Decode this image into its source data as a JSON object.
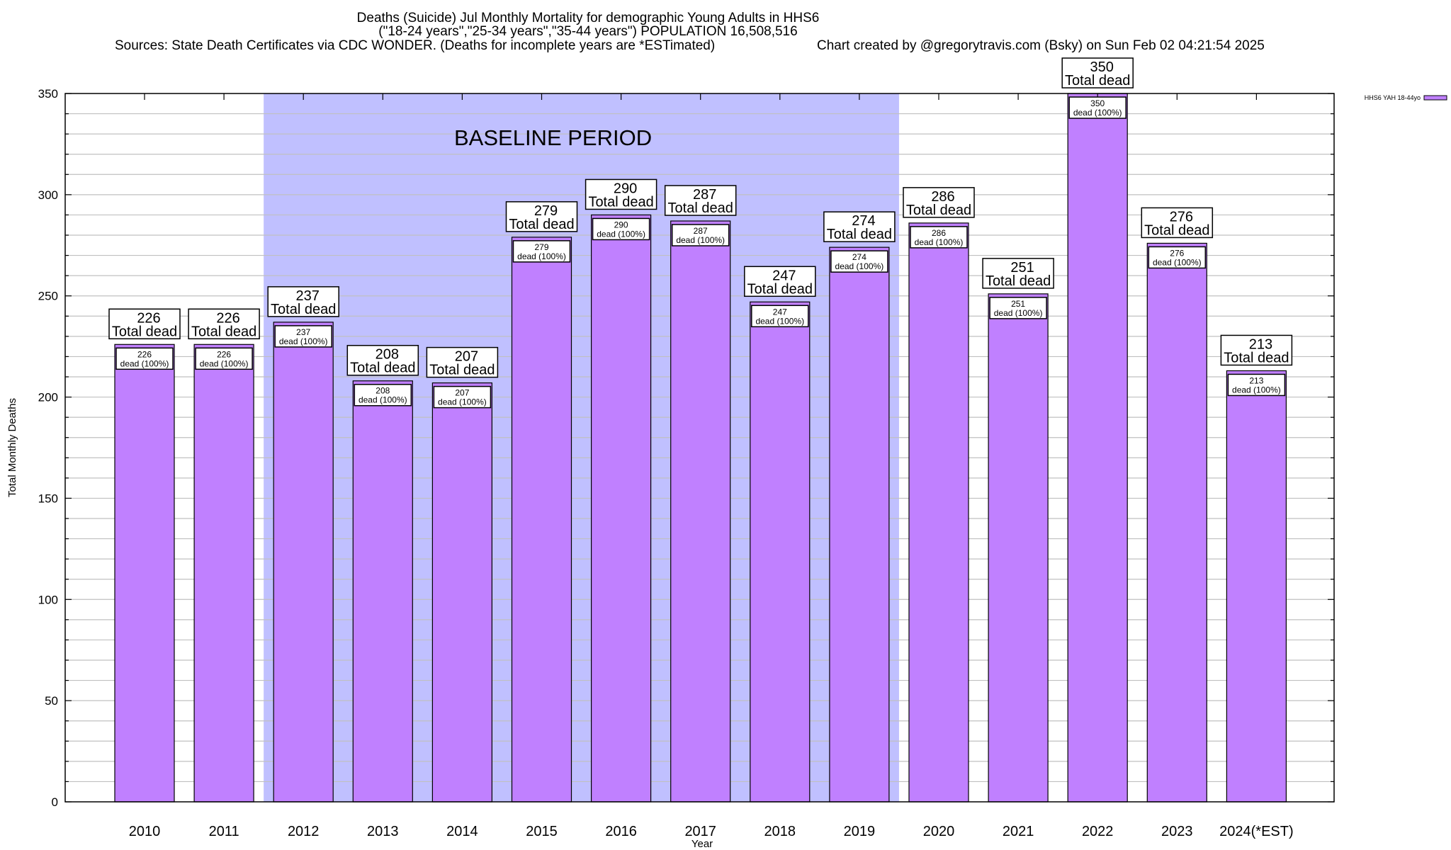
{
  "chart_data": {
    "type": "bar",
    "title_lines": [
      "Deaths (Suicide) Jul Monthly Mortality for demographic Young Adults in HHS6",
      "(\"18-24 years\",\"25-34 years\",\"35-44 years\") POPULATION 16,508,516"
    ],
    "sources": "Sources: State Death Certificates via CDC WONDER. (Deaths for incomplete years are *ESTimated)",
    "credit": "Chart created by @gregorytravis.com (Bsky) on Sun Feb 02 04:21:54 2025",
    "xlabel": "Year",
    "ylabel": "Total Monthly Deaths",
    "ylim": [
      0,
      350
    ],
    "yticks": [
      0,
      50,
      100,
      150,
      200,
      250,
      300,
      350
    ],
    "minor_tick_step": 10,
    "grid": true,
    "categories": [
      "2010",
      "2011",
      "2012",
      "2013",
      "2014",
      "2015",
      "2016",
      "2017",
      "2018",
      "2019",
      "2020",
      "2021",
      "2022",
      "2023",
      "2024(*EST)"
    ],
    "series": [
      {
        "name": "HHS6 YAH 18-44yo",
        "color": "#c080ff",
        "values": [
          226,
          226,
          237,
          208,
          207,
          279,
          290,
          287,
          247,
          274,
          286,
          251,
          350,
          276,
          213
        ]
      }
    ],
    "bar_top_label_suffix": "Total dead",
    "bar_inner_label_suffix": "dead (100%)",
    "legend": {
      "position": "top-right",
      "label": "HHS6 YAH 18-44yo"
    },
    "annotation": {
      "text": "BASELINE PERIOD",
      "region_start": "2012",
      "region_end": "2019",
      "color": "#c0c0ff"
    }
  }
}
